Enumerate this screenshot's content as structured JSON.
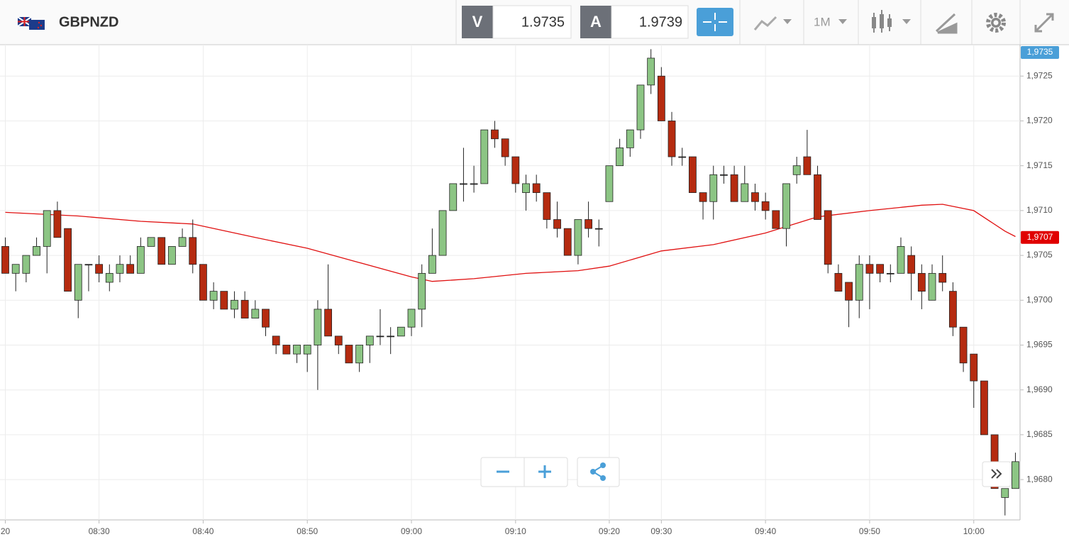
{
  "header": {
    "symbol": "GBPNZD",
    "bid_label": "V",
    "bid": 1.9735,
    "ask_label": "A",
    "ask": 1.9739,
    "timeframe": "1M"
  },
  "chart_data": {
    "type": "candlestick",
    "categories": [
      "20",
      null,
      null,
      null,
      null,
      null,
      null,
      null,
      null,
      "08:30",
      null,
      null,
      null,
      null,
      null,
      null,
      null,
      null,
      null,
      "08:40",
      null,
      null,
      null,
      null,
      null,
      null,
      null,
      null,
      null,
      "08:50",
      null,
      null,
      null,
      null,
      null,
      null,
      null,
      null,
      null,
      "09:00",
      null,
      null,
      null,
      null,
      null,
      null,
      null,
      null,
      null,
      "09:10",
      null,
      null,
      null,
      null,
      null,
      null,
      null,
      null,
      "09:20",
      null,
      null,
      null,
      null,
      "09:30",
      null,
      null,
      null,
      null,
      null,
      null,
      null,
      null,
      null,
      "09:40",
      null,
      null,
      null,
      null,
      null,
      null,
      null,
      null,
      null,
      "09:50",
      null,
      null,
      null,
      null,
      null,
      null,
      null,
      null,
      null,
      "10:00",
      null,
      null,
      null,
      null
    ],
    "open": [
      1.9706,
      1.9703,
      1.9703,
      1.9705,
      1.9706,
      1.971,
      1.9708,
      1.97,
      1.9704,
      1.9704,
      1.9702,
      1.9703,
      1.9704,
      1.9703,
      1.9706,
      1.9707,
      1.9704,
      1.9706,
      1.9707,
      1.9704,
      1.97,
      1.9701,
      1.9699,
      1.97,
      1.9698,
      1.9699,
      1.9696,
      1.9695,
      1.9694,
      1.9694,
      1.9695,
      1.9699,
      1.9696,
      1.9695,
      1.9693,
      1.9695,
      1.9696,
      1.9696,
      1.9696,
      1.9697,
      1.9699,
      1.9703,
      1.9705,
      1.971,
      1.9713,
      1.9713,
      1.9713,
      1.9719,
      1.9718,
      1.9716,
      1.9712,
      1.9713,
      1.9712,
      1.9709,
      1.9708,
      1.9705,
      1.9709,
      1.9708,
      1.9711,
      1.9715,
      1.9717,
      1.9719,
      1.9724,
      1.9725,
      1.972,
      1.9716,
      1.9716,
      1.9712,
      1.9711,
      1.9714,
      1.9714,
      1.9711,
      1.9712,
      1.9711,
      1.971,
      1.9708,
      1.9714,
      1.9716,
      1.9714,
      1.971,
      1.9703,
      1.9702,
      1.97,
      1.9704,
      1.9704,
      1.9703,
      1.9703,
      1.9705,
      1.9703,
      1.97,
      1.9703,
      1.9701,
      1.9697,
      1.9694,
      1.9691,
      1.9685,
      1.9678,
      1.9679
    ],
    "high": [
      1.9707,
      1.9704,
      1.9705,
      1.9707,
      1.971,
      1.9711,
      1.9708,
      1.9704,
      1.9704,
      1.9705,
      1.9704,
      1.9705,
      1.9705,
      1.9707,
      1.9707,
      1.9707,
      1.9706,
      1.9708,
      1.9709,
      1.9704,
      1.9702,
      1.9701,
      1.9701,
      1.9701,
      1.97,
      1.9699,
      1.9696,
      1.9695,
      1.9695,
      1.9695,
      1.97,
      1.9704,
      1.9696,
      1.9695,
      1.9695,
      1.9696,
      1.9699,
      1.9697,
      1.9697,
      1.9699,
      1.9704,
      1.9708,
      1.971,
      1.9713,
      1.9717,
      1.9715,
      1.9719,
      1.972,
      1.9718,
      1.9716,
      1.9714,
      1.9714,
      1.9712,
      1.9711,
      1.9708,
      1.9709,
      1.9711,
      1.9709,
      1.9715,
      1.9718,
      1.9719,
      1.9724,
      1.9728,
      1.9726,
      1.9721,
      1.9717,
      1.9716,
      1.9712,
      1.9715,
      1.9715,
      1.9715,
      1.9715,
      1.9713,
      1.9712,
      1.971,
      1.9713,
      1.9716,
      1.9719,
      1.9715,
      1.971,
      1.9704,
      1.9702,
      1.9705,
      1.9705,
      1.9704,
      1.9704,
      1.9707,
      1.9706,
      1.9704,
      1.9704,
      1.9705,
      1.9702,
      1.9697,
      1.9694,
      1.9691,
      1.9685,
      1.9679,
      1.9683
    ],
    "low": [
      1.9703,
      1.9701,
      1.9702,
      1.9705,
      1.9703,
      1.9707,
      1.9701,
      1.9698,
      1.9701,
      1.9702,
      1.9701,
      1.9702,
      1.9703,
      1.9703,
      1.9706,
      1.9704,
      1.9704,
      1.9706,
      1.9703,
      1.97,
      1.9699,
      1.9699,
      1.9698,
      1.9698,
      1.9698,
      1.9696,
      1.9694,
      1.9694,
      1.9693,
      1.9692,
      1.969,
      1.9696,
      1.9694,
      1.9693,
      1.9692,
      1.9693,
      1.9695,
      1.9694,
      1.9696,
      1.9696,
      1.9697,
      1.9703,
      1.9705,
      1.971,
      1.9711,
      1.9712,
      1.9713,
      1.9717,
      1.9715,
      1.9712,
      1.971,
      1.9711,
      1.9708,
      1.9707,
      1.9705,
      1.9704,
      1.9707,
      1.9706,
      1.9711,
      1.9715,
      1.9716,
      1.9718,
      1.9723,
      1.972,
      1.9715,
      1.9715,
      1.9712,
      1.9709,
      1.9709,
      1.9713,
      1.9711,
      1.9711,
      1.971,
      1.9709,
      1.9708,
      1.9706,
      1.9713,
      1.9714,
      1.9709,
      1.9703,
      1.9701,
      1.9697,
      1.9698,
      1.9699,
      1.9702,
      1.9702,
      1.9703,
      1.97,
      1.9699,
      1.97,
      1.9701,
      1.9696,
      1.9692,
      1.9688,
      1.9685,
      1.9679,
      1.9676,
      1.9679
    ],
    "close": [
      1.9703,
      1.9704,
      1.9705,
      1.9706,
      1.971,
      1.9707,
      1.9701,
      1.9704,
      1.9704,
      1.9703,
      1.9703,
      1.9704,
      1.9703,
      1.9706,
      1.9707,
      1.9704,
      1.9706,
      1.9707,
      1.9704,
      1.97,
      1.9701,
      1.9699,
      1.97,
      1.9698,
      1.9699,
      1.9697,
      1.9695,
      1.9694,
      1.9695,
      1.9695,
      1.9699,
      1.9696,
      1.9695,
      1.9693,
      1.9695,
      1.9696,
      1.9696,
      1.9696,
      1.9697,
      1.9699,
      1.9703,
      1.9705,
      1.971,
      1.9713,
      1.9713,
      1.9713,
      1.9719,
      1.9718,
      1.9716,
      1.9713,
      1.9713,
      1.9712,
      1.9709,
      1.9708,
      1.9705,
      1.9709,
      1.9708,
      1.9708,
      1.9715,
      1.9717,
      1.9719,
      1.9724,
      1.9727,
      1.972,
      1.9716,
      1.9716,
      1.9712,
      1.9711,
      1.9714,
      1.9714,
      1.9711,
      1.9713,
      1.9711,
      1.971,
      1.9708,
      1.9713,
      1.9715,
      1.9714,
      1.9709,
      1.9704,
      1.9701,
      1.97,
      1.9704,
      1.9703,
      1.9703,
      1.9703,
      1.9706,
      1.9703,
      1.9701,
      1.9703,
      1.9702,
      1.9697,
      1.9693,
      1.9691,
      1.9685,
      1.9679,
      1.9679,
      1.9682
    ],
    "up_color": "#8cc584",
    "down_color": "#b52b10",
    "moving_average": {
      "color": "#e01010",
      "x": [
        0,
        7,
        13,
        18,
        24,
        29,
        34,
        39,
        41,
        45,
        50,
        55,
        58,
        63,
        68,
        73,
        78,
        83,
        88,
        90,
        93,
        96,
        97
      ],
      "values": [
        1.97098,
        1.97094,
        1.97088,
        1.97085,
        1.9707,
        1.97058,
        1.97042,
        1.97026,
        1.97021,
        1.97024,
        1.9703,
        1.97033,
        1.97038,
        1.97055,
        1.97062,
        1.97075,
        1.97093,
        1.971,
        1.97106,
        1.97107,
        1.971,
        1.97077,
        1.97071
      ]
    },
    "ylim": [
      1.96755,
      1.97285
    ],
    "yticks": [
      {
        "value": 1.968,
        "label": "1,9680"
      },
      {
        "value": 1.9685,
        "label": "1,9685"
      },
      {
        "value": 1.969,
        "label": "1,9690"
      },
      {
        "value": 1.9695,
        "label": "1,9695"
      },
      {
        "value": 1.97,
        "label": "1,9700"
      },
      {
        "value": 1.9705,
        "label": "1,9705"
      },
      {
        "value": 1.971,
        "label": "1,9710"
      },
      {
        "value": 1.9715,
        "label": "1,9715"
      },
      {
        "value": 1.972,
        "label": "1,9720"
      },
      {
        "value": 1.9725,
        "label": "1,9725"
      }
    ],
    "price_tags": [
      {
        "value": 1.9735,
        "label": "1,9735",
        "color": "#4a9fd8"
      },
      {
        "value": 1.9707,
        "label": "1,9707",
        "color": "#e00000"
      }
    ],
    "grid": true
  }
}
